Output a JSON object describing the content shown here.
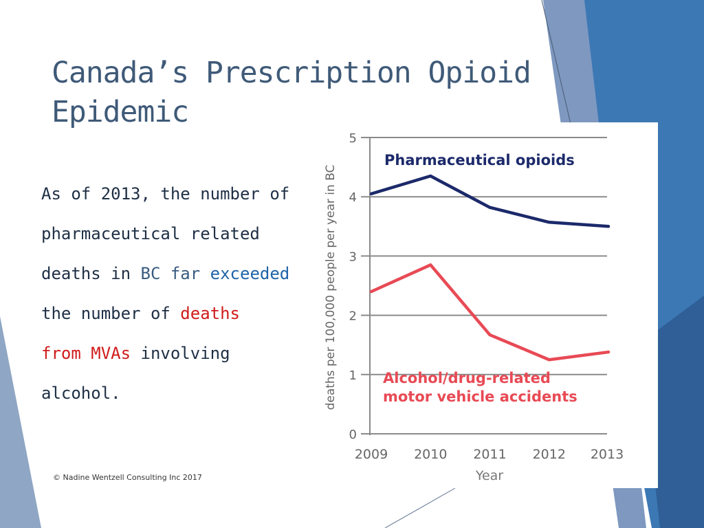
{
  "slide": {
    "title_line1": "Canada’s Prescription Opioid",
    "title_line2": "Epidemic",
    "body": {
      "line1": "As of 2013, the number of",
      "line2": "pharmaceutical related",
      "line3_a": "deaths in ",
      "line3_b": "BC far ",
      "line3_c": "exceeded",
      "line4_a": "the number of ",
      "line4_b": "deaths",
      "line5_a": "from MVAs",
      "line5_b": " involving",
      "line6": "alcohol."
    },
    "copyright": "© Nadine Wentzell Consulting Inc 2017",
    "colors": {
      "title": "#3f5a78",
      "accent_blue": "#1f63a8",
      "accent_red": "#d01a1a",
      "decor_blue": "#3c78b4"
    }
  },
  "chart_data": {
    "type": "line",
    "x": [
      "2009",
      "2010",
      "2011",
      "2012",
      "2013"
    ],
    "xlabel": "Year",
    "ylabel": "deaths per 100,000 people per year in BC",
    "ylim": [
      0,
      5
    ],
    "yticks": [
      "0",
      "1",
      "2",
      "3",
      "4",
      "5"
    ],
    "grid": true,
    "series": [
      {
        "name": "Pharmaceutical opioids",
        "color": "#1c2a6b",
        "values": [
          4.05,
          4.35,
          3.82,
          3.57,
          3.5
        ]
      },
      {
        "name": "Alcohol/drug-related motor vehicle accidents",
        "color": "#e84a55",
        "values": [
          2.4,
          2.85,
          1.67,
          1.25,
          1.38
        ]
      }
    ],
    "labels": {
      "opioids": "Pharmaceutical opioids",
      "mva_line1": "Alcohol/drug-related",
      "mva_line2": "motor vehicle accidents"
    }
  }
}
